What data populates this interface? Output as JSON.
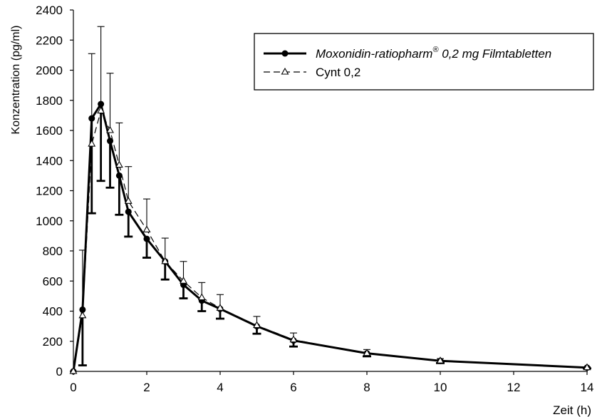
{
  "chart_data": {
    "type": "line",
    "title": "",
    "xlabel": "Zeit (h)",
    "ylabel": "Konzentration (pg/ml)",
    "xlim": [
      0,
      14
    ],
    "ylim": [
      0,
      2400
    ],
    "xticks": [
      0,
      2,
      4,
      6,
      8,
      10,
      12,
      14
    ],
    "yticks": [
      0,
      200,
      400,
      600,
      800,
      1000,
      1200,
      1400,
      1600,
      1800,
      2000,
      2200,
      2400
    ],
    "grid": false,
    "legend_position": "top-right",
    "x": [
      0,
      0.25,
      0.5,
      0.75,
      1,
      1.25,
      1.5,
      2,
      2.5,
      3,
      3.5,
      4,
      5,
      6,
      8,
      10,
      14
    ],
    "series": [
      {
        "name": "Moxonidin-ratiopharm",
        "name_sup": "®",
        "name_suffix": " 0,2 mg Filmtabletten",
        "marker": "filled-circle",
        "line": "solid-bold",
        "color": "#000000",
        "values": [
          0,
          410,
          1680,
          1775,
          1530,
          1300,
          1060,
          880,
          730,
          575,
          470,
          415,
          300,
          205,
          120,
          70,
          25
        ],
        "error_sd": [
          0,
          370,
          630,
          510,
          310,
          260,
          165,
          125,
          120,
          90,
          70,
          65,
          50,
          40,
          20,
          15,
          5
        ]
      },
      {
        "name": "Cynt 0,2",
        "marker": "open-triangle",
        "line": "dashed-thin",
        "color": "#000000",
        "values": [
          0,
          370,
          1510,
          1730,
          1600,
          1370,
          1130,
          940,
          730,
          600,
          490,
          420,
          305,
          210,
          120,
          70,
          25
        ],
        "error_sd": [
          0,
          435,
          600,
          560,
          380,
          280,
          230,
          205,
          155,
          130,
          100,
          90,
          60,
          45,
          25,
          15,
          5
        ]
      }
    ]
  }
}
